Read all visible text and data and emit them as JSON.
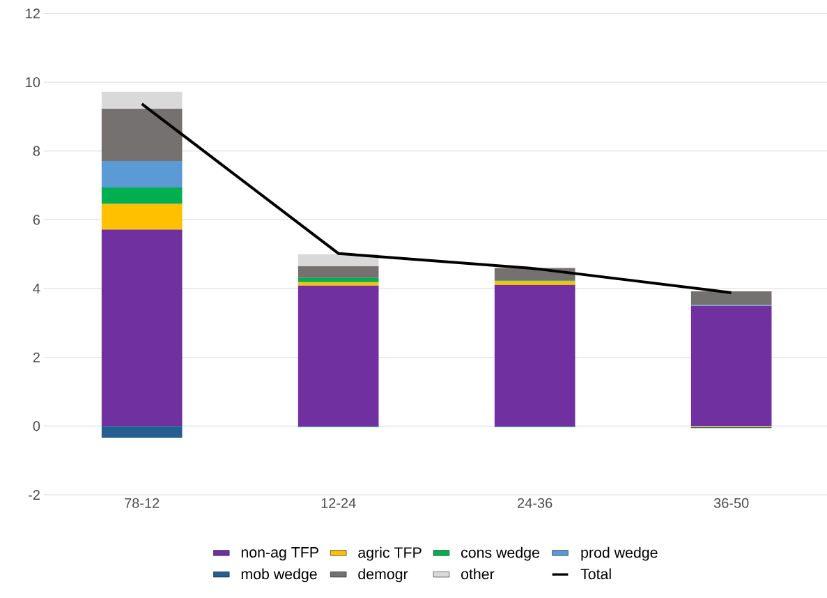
{
  "chart_data": {
    "type": "bar",
    "stacked": true,
    "categories": [
      "78-12",
      "12-24",
      "24-36",
      "36-50"
    ],
    "series": [
      {
        "name": "non-ag TFP",
        "color": "#7030a0",
        "values": [
          5.72,
          4.09,
          4.11,
          3.5
        ]
      },
      {
        "name": "agric TFP",
        "color": "#ffc000",
        "values": [
          0.75,
          0.1,
          0.11,
          -0.03
        ]
      },
      {
        "name": "cons wedge",
        "color": "#00b050",
        "values": [
          0.47,
          0.12,
          0.02,
          0
        ]
      },
      {
        "name": "prod wedge",
        "color": "#5b9bd5",
        "values": [
          0.77,
          0,
          0,
          0.02
        ]
      },
      {
        "name": "mob wedge",
        "color": "#255e91",
        "values": [
          -0.34,
          -0.03,
          -0.03,
          -0.03
        ]
      },
      {
        "name": "demogr",
        "color": "#767171",
        "values": [
          1.52,
          0.34,
          0.36,
          0.4
        ]
      },
      {
        "name": "other",
        "color": "#d9d9d9",
        "values": [
          0.49,
          0.35,
          0,
          0
        ]
      },
      {
        "name": "Total",
        "type": "line",
        "color": "#000000",
        "values": [
          9.37,
          5.02,
          4.58,
          3.88
        ]
      }
    ],
    "ylim": [
      -2,
      12
    ],
    "yticks": [
      -2,
      0,
      2,
      4,
      6,
      8,
      10,
      12
    ],
    "grid": "y",
    "legend": "bottom"
  }
}
